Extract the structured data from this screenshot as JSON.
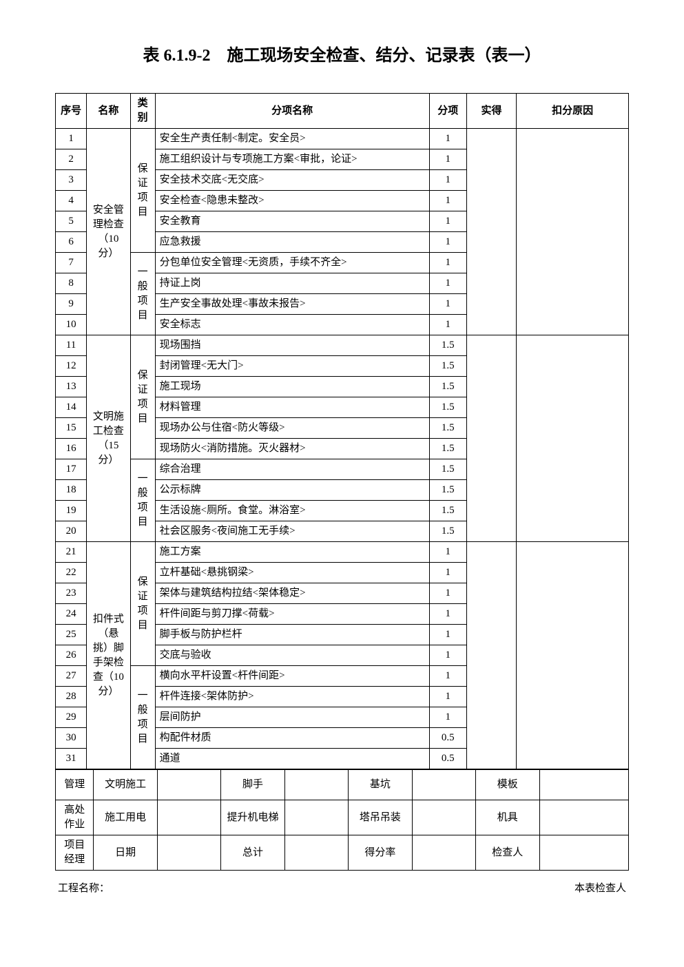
{
  "title": "表 6.1.9-2　施工现场安全检查、结分、记录表（表一）",
  "headers": {
    "seq": "序号",
    "name": "名称",
    "category": "类别",
    "item_name": "分项名称",
    "score": "分项",
    "actual": "实得",
    "reason": "扣分原因"
  },
  "sections": [
    {
      "name": "安全管理检查（10分）",
      "cat1": "保证项目",
      "cat2": "一般项目",
      "rows1": [
        {
          "seq": "1",
          "item": "安全生产责任制<制定。安全员>",
          "score": "1"
        },
        {
          "seq": "2",
          "item": "施工组织设计与专项施工方案<审批，论证>",
          "score": "1"
        },
        {
          "seq": "3",
          "item": "安全技术交底<无交底>",
          "score": "1"
        },
        {
          "seq": "4",
          "item": "安全检查<隐患未整改>",
          "score": "1"
        },
        {
          "seq": "5",
          "item": "安全教育",
          "score": "1"
        },
        {
          "seq": "6",
          "item": "应急救援",
          "score": "1"
        }
      ],
      "rows2": [
        {
          "seq": "7",
          "item": "分包单位安全管理<无资质，手续不齐全>",
          "score": "1"
        },
        {
          "seq": "8",
          "item": "持证上岗",
          "score": "1"
        },
        {
          "seq": "9",
          "item": "生产安全事故处理<事故未报告>",
          "score": "1"
        },
        {
          "seq": "10",
          "item": "安全标志",
          "score": "1"
        }
      ]
    },
    {
      "name": "文明施工检查（15分）",
      "cat1": "保证项目",
      "cat2": "一般项目",
      "rows1": [
        {
          "seq": "11",
          "item": "现场围挡",
          "score": "1.5"
        },
        {
          "seq": "12",
          "item": "封闭管理<无大门>",
          "score": "1.5"
        },
        {
          "seq": "13",
          "item": "施工现场",
          "score": "1.5"
        },
        {
          "seq": "14",
          "item": "材料管理",
          "score": "1.5"
        },
        {
          "seq": "15",
          "item": "现场办公与住宿<防火等级>",
          "score": "1.5"
        },
        {
          "seq": "16",
          "item": "现场防火<消防措施。灭火器材>",
          "score": "1.5"
        }
      ],
      "rows2": [
        {
          "seq": "17",
          "item": "综合治理",
          "score": "1.5"
        },
        {
          "seq": "18",
          "item": "公示标牌",
          "score": "1.5"
        },
        {
          "seq": "19",
          "item": "生活设施<厕所。食堂。淋浴室>",
          "score": "1.5"
        },
        {
          "seq": "20",
          "item": "社会区服务<夜间施工无手续>",
          "score": "1.5"
        }
      ]
    },
    {
      "name": "扣件式（悬挑）脚手架检查（10分）",
      "cat1": "保证项目",
      "cat2": "一般项目",
      "rows1": [
        {
          "seq": "21",
          "item": "施工方案",
          "score": "1"
        },
        {
          "seq": "22",
          "item": "立杆基础<悬挑钢梁>",
          "score": "1"
        },
        {
          "seq": "23",
          "item": "架体与建筑结构拉结<架体稳定>",
          "score": "1"
        },
        {
          "seq": "24",
          "item": "杆件间距与剪刀撑<荷载>",
          "score": "1"
        },
        {
          "seq": "25",
          "item": "脚手板与防护栏杆",
          "score": "1"
        },
        {
          "seq": "26",
          "item": "交底与验收",
          "score": "1"
        }
      ],
      "rows2": [
        {
          "seq": "27",
          "item": "横向水平杆设置<杆件间距>",
          "score": "1"
        },
        {
          "seq": "28",
          "item": "杆件连接<架体防护>",
          "score": "1"
        },
        {
          "seq": "29",
          "item": "层间防护",
          "score": "1"
        },
        {
          "seq": "30",
          "item": "构配件材质",
          "score": "0.5"
        },
        {
          "seq": "31",
          "item": "通道",
          "score": "0.5"
        }
      ]
    }
  ],
  "summary": {
    "row1": [
      "管理",
      "文明施工",
      "",
      "脚手",
      "",
      "基坑",
      "",
      "模板",
      ""
    ],
    "row2": [
      "高处作业",
      "施工用电",
      "",
      "提升机电梯",
      "",
      "塔吊吊装",
      "",
      "机具",
      ""
    ],
    "row3": [
      "项目经理",
      "日期",
      "",
      "总计",
      "",
      "得分率",
      "",
      "检查人",
      ""
    ]
  },
  "footer": {
    "left": "工程名称：",
    "right": "本表检查人"
  }
}
